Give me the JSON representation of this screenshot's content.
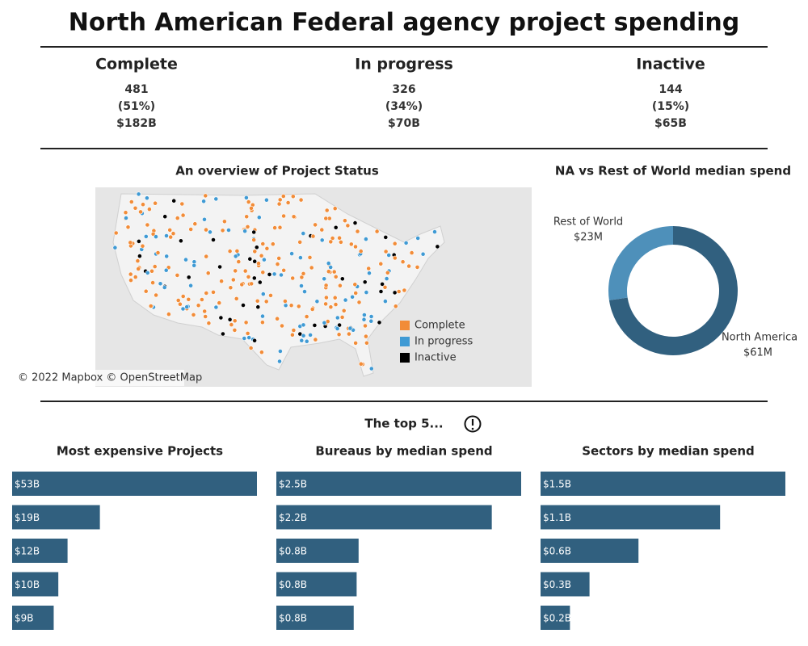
{
  "title": "North American Federal agency project spending",
  "status_summary": [
    {
      "name": "Complete",
      "count": 481,
      "share": "(51%)",
      "spend": "$182B"
    },
    {
      "name": "In progress",
      "count": 326,
      "share": "(34%)",
      "spend": "$70B"
    },
    {
      "name": "Inactive",
      "count": 144,
      "share": "(15%)",
      "spend": "$65B"
    }
  ],
  "map": {
    "title": "An overview of Project Status",
    "legend": [
      {
        "name": "Complete",
        "color": "#f28c38"
      },
      {
        "name": "In progress",
        "color": "#3f9ad4"
      },
      {
        "name": "Inactive",
        "color": "#000000"
      }
    ],
    "attribution": "© 2022 Mapbox © OpenStreetMap"
  },
  "top_heading": "The top 5...",
  "chart_data": [
    {
      "type": "donut",
      "title": "NA vs Rest of World median spend",
      "categories": [
        "North America",
        "Rest of World"
      ],
      "values": [
        61,
        23
      ],
      "value_labels": [
        "$61M",
        "$23M"
      ],
      "colors": [
        "#31607f",
        "#4e90ba"
      ]
    },
    {
      "type": "bar",
      "orientation": "horizontal",
      "title": "Most expensive Projects",
      "values": [
        53,
        19,
        12,
        10,
        9
      ],
      "value_labels": [
        "$53B",
        "$19B",
        "$12B",
        "$10B",
        "$9B"
      ],
      "color": "#31607f"
    },
    {
      "type": "bar",
      "orientation": "horizontal",
      "title": "Bureaus by median spend",
      "values": [
        2.5,
        2.2,
        0.84,
        0.82,
        0.79
      ],
      "value_labels": [
        "$2.5B",
        "$2.2B",
        "$0.8B",
        "$0.8B",
        "$0.8B"
      ],
      "color": "#31607f"
    },
    {
      "type": "bar",
      "orientation": "horizontal",
      "title": "Sectors by median spend",
      "values": [
        1.5,
        1.1,
        0.6,
        0.3,
        0.18
      ],
      "value_labels": [
        "$1.5B",
        "$1.1B",
        "$0.6B",
        "$0.3B",
        "$0.2B"
      ],
      "color": "#31607f"
    }
  ]
}
